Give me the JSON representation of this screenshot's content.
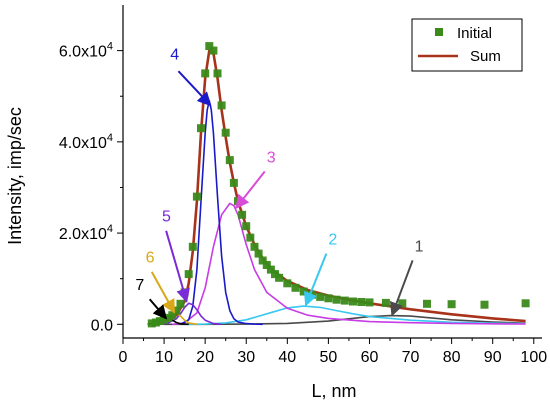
{
  "chart_data": {
    "type": "line",
    "xlabel": "L, nm",
    "ylabel": "Intensity, imp/sec",
    "xlim": [
      0,
      102
    ],
    "ylim": [
      -3000,
      70000
    ],
    "x_ticks": [
      0,
      10,
      20,
      30,
      40,
      50,
      60,
      70,
      80,
      90,
      100
    ],
    "y_ticks": [
      {
        "value": 0,
        "base": "0.0",
        "exp": ""
      },
      {
        "value": 20000,
        "base": "2.0x10",
        "exp": "4"
      },
      {
        "value": 40000,
        "base": "4.0x10",
        "exp": "4"
      },
      {
        "value": 60000,
        "base": "6.0x10",
        "exp": "4"
      }
    ],
    "grid": false,
    "legend_position": "top-right",
    "legend": [
      {
        "label": "Initial",
        "color": "#3a8a1a",
        "marker": "square"
      },
      {
        "label": "Sum",
        "color": "#a8321a",
        "marker": "line"
      }
    ],
    "initial_points": {
      "x": [
        7,
        8,
        9,
        10,
        11,
        12,
        13,
        14,
        15,
        16,
        17,
        18,
        19,
        20,
        21,
        22,
        23,
        24,
        25,
        26,
        27,
        28,
        29,
        30,
        31,
        32,
        33,
        34,
        35,
        36,
        37,
        38,
        40,
        42,
        44,
        46,
        48,
        50,
        52,
        54,
        56,
        58,
        60,
        64,
        68,
        74,
        80,
        88,
        98
      ],
      "y": [
        200,
        400,
        700,
        1000,
        1400,
        2000,
        3000,
        4500,
        7000,
        11000,
        17000,
        28000,
        43000,
        55000,
        61000,
        60000,
        55000,
        48000,
        42000,
        36000,
        31000,
        27000,
        24000,
        21500,
        19000,
        17000,
        15500,
        14000,
        13000,
        12000,
        11000,
        10200,
        9000,
        8000,
        7200,
        6500,
        6000,
        5700,
        5400,
        5200,
        5000,
        4900,
        4800,
        4700,
        4600,
        4500,
        4400,
        4300,
        4600
      ]
    },
    "sum_curve": {
      "color": "#a8321a",
      "x": [
        7,
        9,
        11,
        13,
        15,
        16,
        17,
        18,
        19,
        20,
        21,
        22,
        23,
        24,
        25,
        26,
        27,
        28,
        30,
        32,
        34,
        36,
        38,
        40,
        45,
        50,
        55,
        60,
        70,
        80,
        90,
        98
      ],
      "y": [
        150,
        400,
        900,
        2000,
        5000,
        9000,
        16000,
        27000,
        42000,
        54000,
        60000,
        59500,
        54000,
        47000,
        41000,
        35500,
        31000,
        27000,
        21500,
        17500,
        14500,
        12300,
        10800,
        9500,
        7500,
        6300,
        5400,
        4600,
        3300,
        2200,
        1300,
        700
      ]
    },
    "components": [
      {
        "label": "1",
        "color": "#4a4a4a",
        "x": [
          10,
          20,
          30,
          40,
          50,
          55,
          60,
          65,
          70,
          75,
          80,
          90,
          98
        ],
        "y": [
          0,
          0,
          50,
          200,
          700,
          1200,
          1700,
          1900,
          1800,
          1400,
          1000,
          500,
          250
        ]
      },
      {
        "label": "2",
        "color": "#38c8f0",
        "x": [
          15,
          20,
          25,
          30,
          35,
          40,
          44,
          48,
          52,
          56,
          60,
          70,
          80,
          90,
          98
        ],
        "y": [
          0,
          50,
          300,
          1000,
          2300,
          3600,
          4000,
          3700,
          3000,
          2300,
          1700,
          900,
          450,
          250,
          150
        ]
      },
      {
        "label": "3",
        "color": "#c83ce6",
        "x": [
          12,
          15,
          18,
          20,
          22,
          24,
          26,
          27,
          28,
          30,
          32,
          35,
          40,
          45,
          50,
          60,
          70,
          80,
          90,
          98
        ],
        "y": [
          0,
          300,
          2500,
          8000,
          17000,
          24000,
          26500,
          26000,
          24000,
          17500,
          12000,
          7000,
          3500,
          2000,
          1300,
          600,
          350,
          200,
          120,
          80
        ]
      },
      {
        "label": "4",
        "color": "#1a1ac8",
        "x": [
          14,
          16,
          17,
          18,
          19,
          20,
          20.5,
          21,
          21.5,
          22,
          23,
          24,
          25,
          26,
          27,
          28,
          30,
          32,
          34
        ],
        "y": [
          0,
          1000,
          4000,
          12000,
          27000,
          42000,
          47000,
          49000,
          47000,
          42000,
          28000,
          15000,
          7000,
          3000,
          1200,
          500,
          150,
          50,
          0
        ]
      },
      {
        "label": "5",
        "color": "#7a2ad6",
        "x": [
          9,
          11,
          13,
          14,
          15,
          16,
          17,
          18,
          19,
          20,
          22,
          24
        ],
        "y": [
          0,
          300,
          1200,
          2300,
          3700,
          4600,
          4300,
          3200,
          1800,
          900,
          150,
          0
        ]
      },
      {
        "label": "6",
        "color": "#d8a818",
        "x": [
          8,
          10,
          11,
          12,
          13,
          14,
          15,
          16,
          18
        ],
        "y": [
          0,
          600,
          1500,
          2300,
          2500,
          1800,
          900,
          300,
          0
        ]
      },
      {
        "label": "7",
        "color": "#000000",
        "x": [
          6,
          8,
          9,
          10,
          11,
          12,
          13,
          14,
          16
        ],
        "y": [
          0,
          400,
          900,
          1300,
          1350,
          900,
          400,
          120,
          0
        ]
      }
    ],
    "annotations": [
      {
        "text": "4",
        "color": "#1a1ac8",
        "text_at": [
          11.5,
          58000
        ],
        "arrow_from": [
          13.5,
          55500
        ],
        "arrow_to": [
          21.3,
          48000
        ]
      },
      {
        "text": "3",
        "color": "#d84cd8",
        "text_at": [
          35,
          35500
        ],
        "arrow_from": [
          34.5,
          33500
        ],
        "arrow_to": [
          27.5,
          25500
        ]
      },
      {
        "text": "2",
        "color": "#38c8f0",
        "text_at": [
          50,
          17500
        ],
        "arrow_from": [
          49.5,
          15500
        ],
        "arrow_to": [
          44.5,
          4200
        ]
      },
      {
        "text": "1",
        "color": "#4a4a4a",
        "text_at": [
          71,
          16000
        ],
        "arrow_from": [
          70.5,
          14000
        ],
        "arrow_to": [
          65.5,
          2000
        ]
      },
      {
        "text": "5",
        "color": "#7a2ad6",
        "text_at": [
          9.5,
          22500
        ],
        "arrow_from": [
          10.5,
          20500
        ],
        "arrow_to": [
          15.5,
          5000
        ]
      },
      {
        "text": "6",
        "color": "#d8a818",
        "text_at": [
          5.5,
          13500
        ],
        "arrow_from": [
          7,
          11500
        ],
        "arrow_to": [
          12.5,
          2600
        ]
      },
      {
        "text": "7",
        "color": "#000000",
        "text_at": [
          3,
          7500
        ],
        "arrow_from": [
          6.5,
          5500
        ],
        "arrow_to": [
          10.5,
          1300
        ]
      }
    ]
  }
}
